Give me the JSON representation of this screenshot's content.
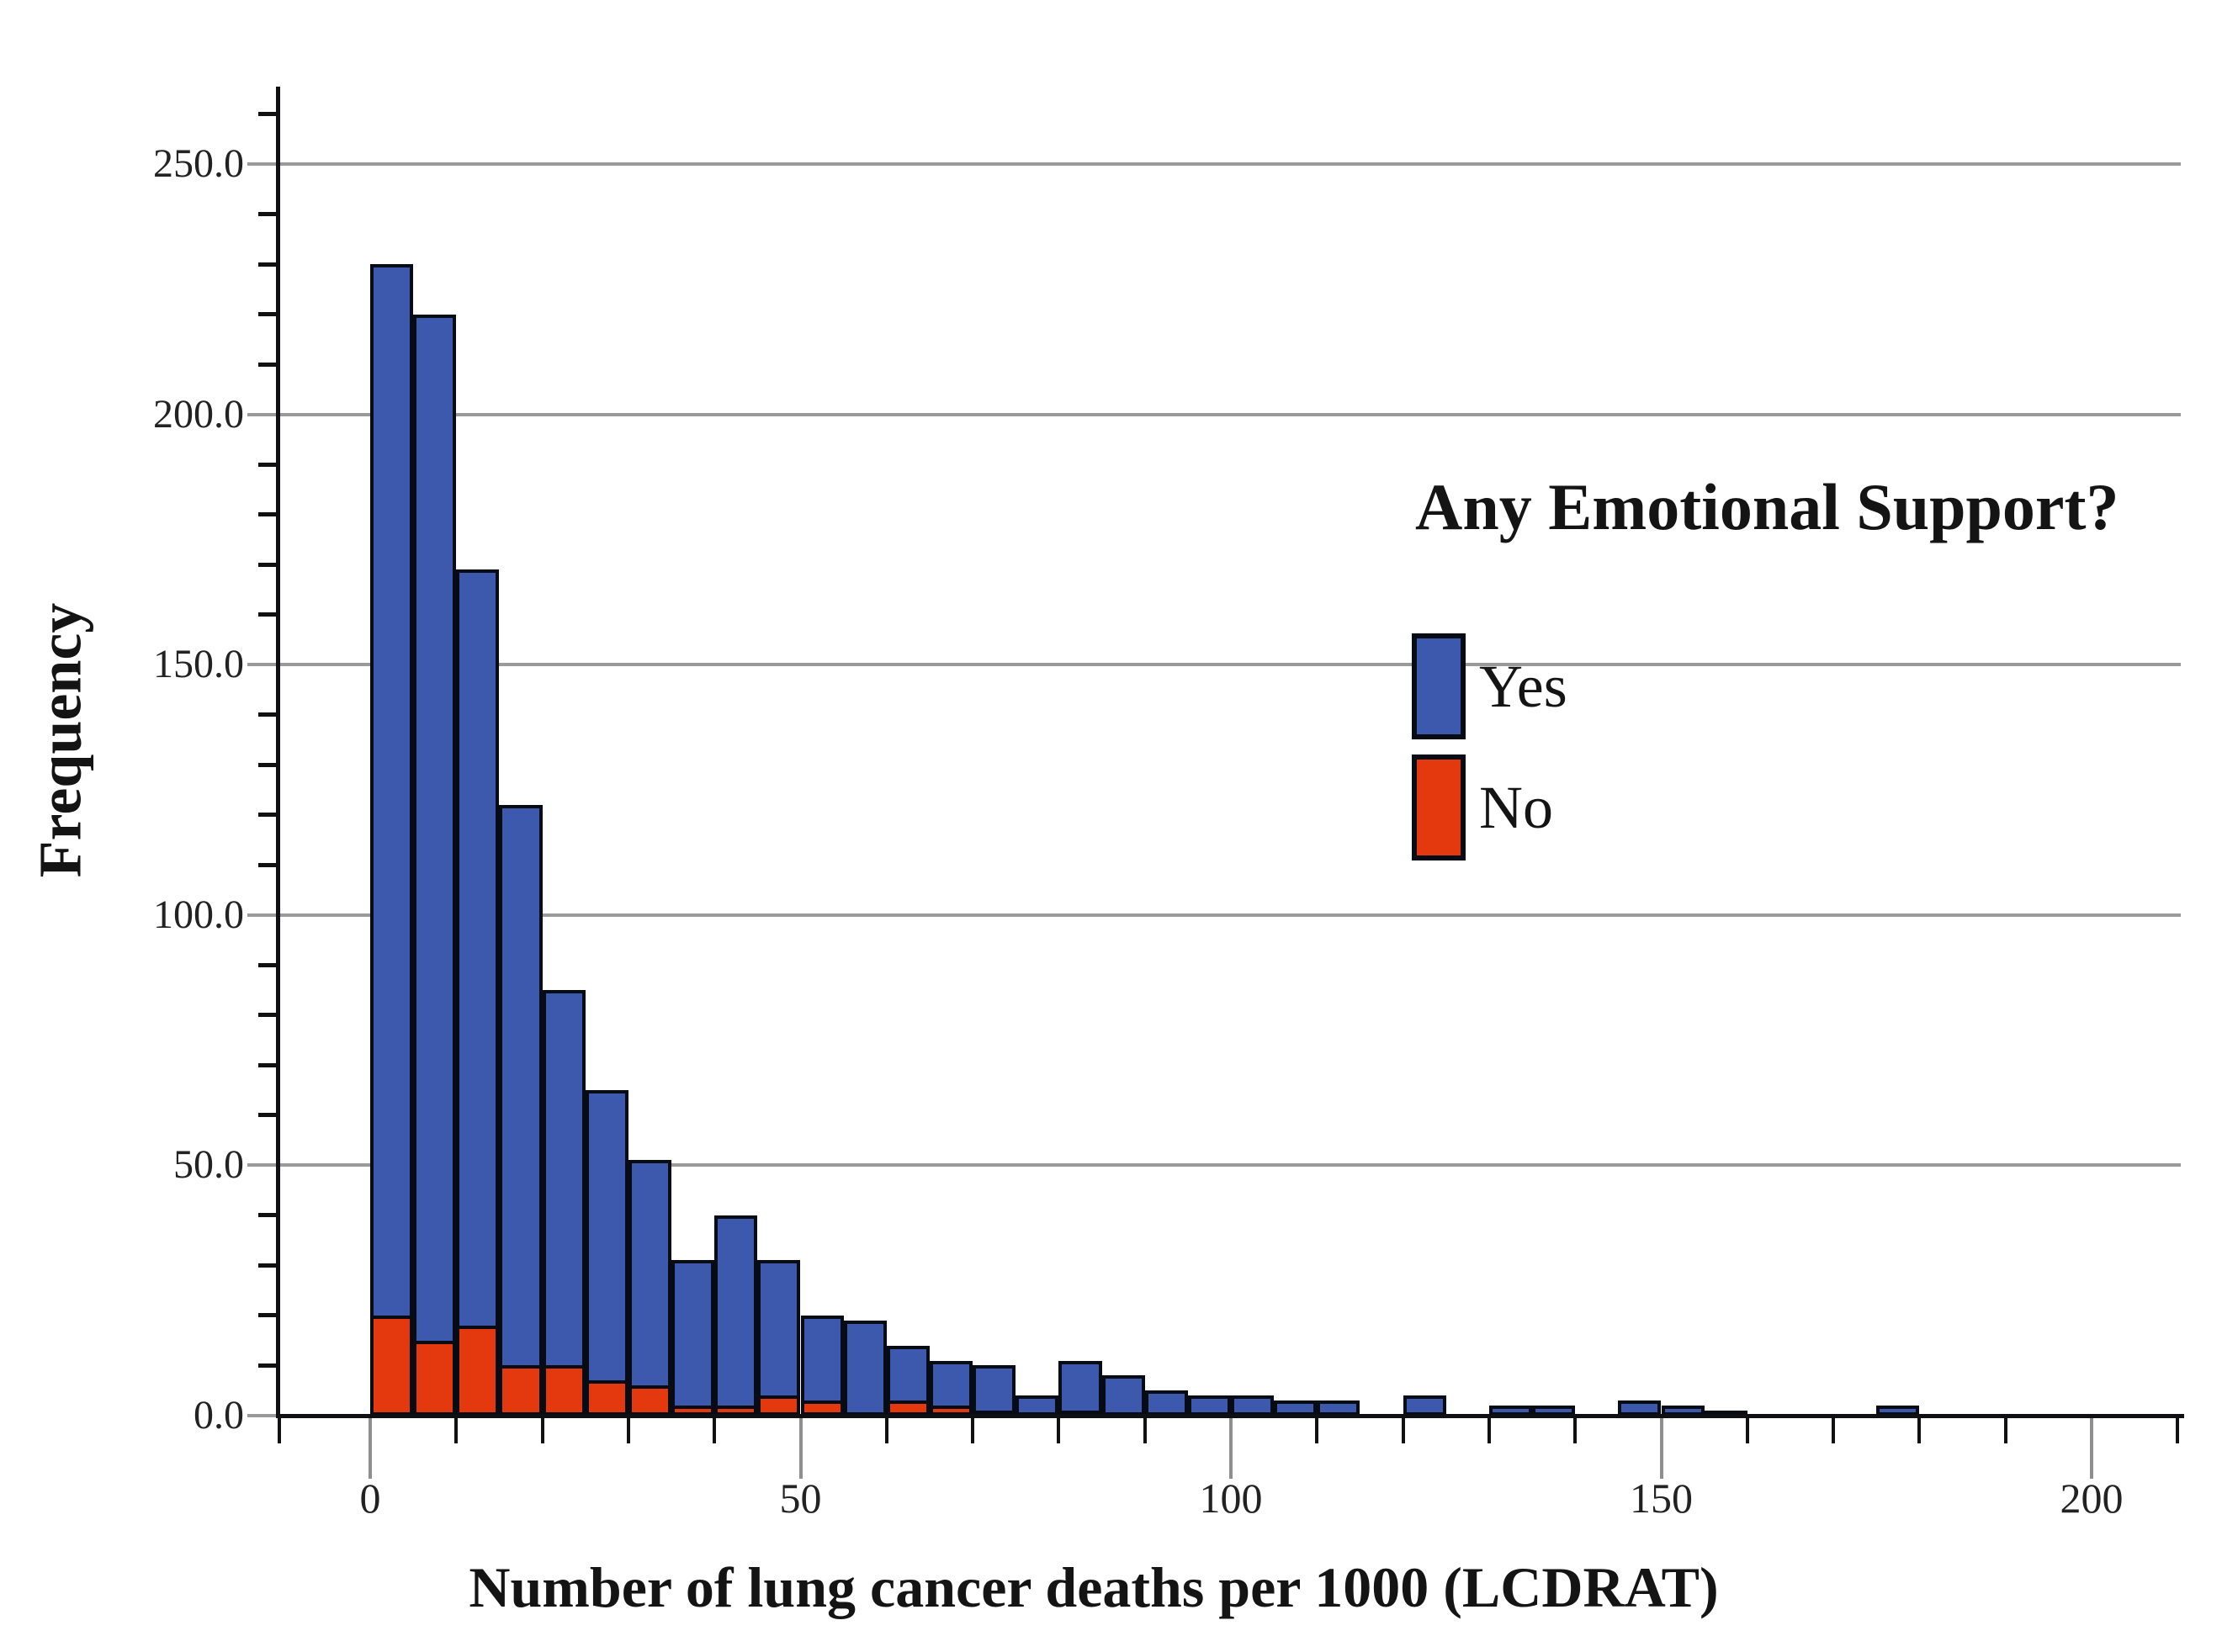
{
  "figure": {
    "background": "#ffffff",
    "y_axis": {
      "label": "Frequency",
      "tick_labels": [
        "0.0",
        "50.0",
        "100.0",
        "150.0",
        "200.0",
        "250.0"
      ],
      "tick_values": [
        0,
        50,
        100,
        150,
        200,
        250
      ],
      "minor_step": 10,
      "max": 260
    },
    "x_axis": {
      "label": "Number of lung cancer deaths per 1000 (LCDRAT)",
      "tick_labels": [
        "0",
        "50",
        "100",
        "150",
        "200"
      ],
      "tick_values": [
        0,
        50,
        100,
        150,
        200
      ],
      "minor_step": 10,
      "max": 210
    },
    "legend": {
      "title": "Any Emotional Support?",
      "items": [
        {
          "label": "Yes",
          "color": "#3c59ad"
        },
        {
          "label": "No",
          "color": "#e4390e"
        }
      ]
    }
  },
  "chart_data": {
    "type": "bar",
    "subtype": "stacked-histogram",
    "title": "",
    "xlabel": "Number of lung cancer deaths per 1000 (LCDRAT)",
    "ylabel": "Frequency",
    "legend_title": "Any Emotional Support?",
    "legend_position": "upper-right",
    "grid": "horizontal-only",
    "grid_color": "#9a9a9a",
    "bar_border_color": "#070b14",
    "xlim": [
      -11,
      211
    ],
    "ylim": [
      0,
      265
    ],
    "bin_width": 5,
    "series_colors": {
      "yes": "#3c59ad",
      "no": "#e4390e"
    },
    "series_note": "total bar height = yes + no; 'No' (red) segment stacked at bottom",
    "bins": [
      {
        "start": 0,
        "yes": 210,
        "no": 20
      },
      {
        "start": 5,
        "yes": 205,
        "no": 15
      },
      {
        "start": 10,
        "yes": 151,
        "no": 18
      },
      {
        "start": 15,
        "yes": 112,
        "no": 10
      },
      {
        "start": 20,
        "yes": 75,
        "no": 10
      },
      {
        "start": 25,
        "yes": 58,
        "no": 7
      },
      {
        "start": 30,
        "yes": 45,
        "no": 6
      },
      {
        "start": 35,
        "yes": 29,
        "no": 2
      },
      {
        "start": 40,
        "yes": 38,
        "no": 2
      },
      {
        "start": 45,
        "yes": 27,
        "no": 4
      },
      {
        "start": 50,
        "yes": 17,
        "no": 3
      },
      {
        "start": 55,
        "yes": 19,
        "no": 0
      },
      {
        "start": 60,
        "yes": 11,
        "no": 3
      },
      {
        "start": 65,
        "yes": 9,
        "no": 2
      },
      {
        "start": 70,
        "yes": 9,
        "no": 1
      },
      {
        "start": 75,
        "yes": 4,
        "no": 0
      },
      {
        "start": 80,
        "yes": 10,
        "no": 1
      },
      {
        "start": 85,
        "yes": 8,
        "no": 0
      },
      {
        "start": 90,
        "yes": 5,
        "no": 0
      },
      {
        "start": 95,
        "yes": 4,
        "no": 0
      },
      {
        "start": 100,
        "yes": 4,
        "no": 0
      },
      {
        "start": 105,
        "yes": 3,
        "no": 0
      },
      {
        "start": 110,
        "yes": 3,
        "no": 0
      },
      {
        "start": 115,
        "yes": 0,
        "no": 0
      },
      {
        "start": 120,
        "yes": 4,
        "no": 0
      },
      {
        "start": 125,
        "yes": 0,
        "no": 0
      },
      {
        "start": 130,
        "yes": 2,
        "no": 0
      },
      {
        "start": 135,
        "yes": 2,
        "no": 0
      },
      {
        "start": 140,
        "yes": 0,
        "no": 0
      },
      {
        "start": 145,
        "yes": 3,
        "no": 0
      },
      {
        "start": 150,
        "yes": 2,
        "no": 0
      },
      {
        "start": 155,
        "yes": 1,
        "no": 0
      },
      {
        "start": 160,
        "yes": 0,
        "no": 0
      },
      {
        "start": 165,
        "yes": 0,
        "no": 0
      },
      {
        "start": 170,
        "yes": 0,
        "no": 0
      },
      {
        "start": 175,
        "yes": 2,
        "no": 0
      },
      {
        "start": 180,
        "yes": 0,
        "no": 0
      }
    ]
  }
}
